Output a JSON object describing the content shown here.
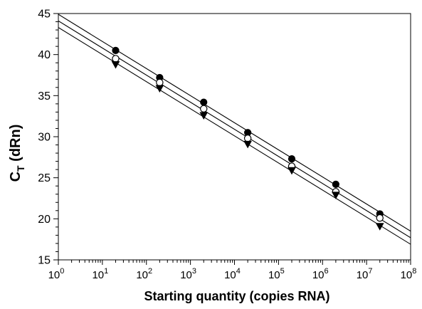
{
  "chart_data": {
    "type": "scatter",
    "title": "",
    "xlabel": "Starting quantity (copies RNA)",
    "ylabel_main": "C",
    "ylabel_sub": "T",
    "ylabel_rest": " (dRn)",
    "x_scale": "log10",
    "xlim": [
      1,
      100000000
    ],
    "ylim": [
      15,
      45
    ],
    "x_ticks": [
      {
        "base": "10",
        "exp": "0",
        "value": 1
      },
      {
        "base": "10",
        "exp": "1",
        "value": 10
      },
      {
        "base": "10",
        "exp": "2",
        "value": 100
      },
      {
        "base": "10",
        "exp": "3",
        "value": 1000
      },
      {
        "base": "10",
        "exp": "4",
        "value": 10000
      },
      {
        "base": "10",
        "exp": "5",
        "value": 100000
      },
      {
        "base": "10",
        "exp": "6",
        "value": 1000000
      },
      {
        "base": "10",
        "exp": "7",
        "value": 10000000
      },
      {
        "base": "10",
        "exp": "8",
        "value": 100000000
      }
    ],
    "y_ticks": [
      "15",
      "20",
      "25",
      "30",
      "35",
      "40",
      "45"
    ],
    "grid": false,
    "legend": "none",
    "series": [
      {
        "marker": "filled-circle",
        "x": [
          20,
          200,
          2000,
          20000,
          200000,
          2000000,
          20000000
        ],
        "y": [
          40.5,
          37.2,
          34.2,
          30.5,
          27.3,
          24.2,
          20.6
        ],
        "fit_line": {
          "intercept": 44.9,
          "slope": -3.3
        }
      },
      {
        "marker": "open-circle",
        "x": [
          20,
          200,
          2000,
          20000,
          200000,
          2000000,
          20000000
        ],
        "y": [
          39.5,
          36.6,
          33.4,
          29.8,
          26.4,
          23.3,
          20.1
        ],
        "fit_line": {
          "intercept": 44.1,
          "slope": -3.3
        }
      },
      {
        "marker": "filled-triangle-down",
        "x": [
          20,
          200,
          2000,
          20000,
          200000,
          2000000,
          20000000
        ],
        "y": [
          38.8,
          35.9,
          32.6,
          29.1,
          25.9,
          22.9,
          19.1
        ],
        "fit_line": {
          "intercept": 43.3,
          "slope": -3.3
        }
      }
    ]
  }
}
